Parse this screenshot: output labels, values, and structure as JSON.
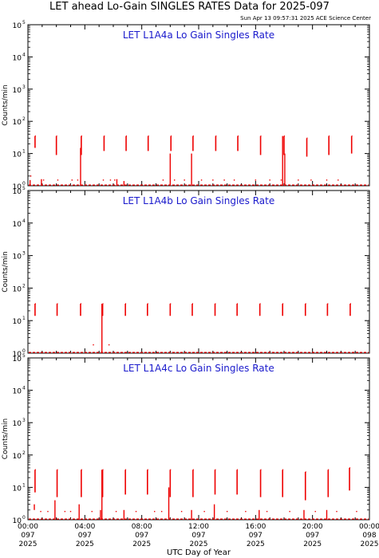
{
  "header": {
    "title": "LET ahead Lo-Gain SINGLES RATES Data for 2025-097",
    "timestamp": "Sun Apr 13 09:57:31 2025 ACE Science Center"
  },
  "chart_data": {
    "type": "scatter",
    "xlabel": "UTC Day of Year",
    "x_ticks": [
      {
        "time": "00:00",
        "day": "097",
        "year": "2025"
      },
      {
        "time": "04:00",
        "day": "097",
        "year": "2025"
      },
      {
        "time": "08:00",
        "day": "097",
        "year": "2025"
      },
      {
        "time": "12:00",
        "day": "097",
        "year": "2025"
      },
      {
        "time": "16:00",
        "day": "097",
        "year": "2025"
      },
      {
        "time": "20:00",
        "day": "097",
        "year": "2025"
      },
      {
        "time": "00:00",
        "day": "098",
        "year": "2025"
      }
    ],
    "xlim_hours": [
      0,
      24
    ],
    "y_scale": "log",
    "ylim": [
      1,
      100000
    ],
    "y_ticks": [
      1,
      10,
      100,
      1000,
      10000,
      100000
    ],
    "y_tick_labels": [
      "10",
      "10",
      "10",
      "10",
      "10",
      "10"
    ],
    "y_tick_exponents": [
      "0",
      "1",
      "2",
      "3",
      "4",
      "5"
    ],
    "color": "#ee0000",
    "panels": [
      {
        "label": "LET L1A4a Lo Gain Singles Rate",
        "ylabel": "Counts/min",
        "bursts": [
          {
            "start": 0.5,
            "end": 0.55,
            "low": 15,
            "high": 35
          },
          {
            "start": 2.0,
            "end": 2.05,
            "low": 9,
            "high": 35
          },
          {
            "start": 3.75,
            "end": 3.8,
            "low": 9,
            "high": 35
          },
          {
            "start": 5.35,
            "end": 5.4,
            "low": 12,
            "high": 35
          },
          {
            "start": 6.9,
            "end": 6.95,
            "low": 12,
            "high": 35
          },
          {
            "start": 8.45,
            "end": 8.5,
            "low": 12,
            "high": 35
          },
          {
            "start": 10.05,
            "end": 10.1,
            "low": 12,
            "high": 35
          },
          {
            "start": 11.6,
            "end": 11.65,
            "low": 12,
            "high": 35
          },
          {
            "start": 13.2,
            "end": 13.25,
            "low": 12,
            "high": 35
          },
          {
            "start": 14.75,
            "end": 14.8,
            "low": 12,
            "high": 35
          },
          {
            "start": 16.35,
            "end": 16.4,
            "low": 9,
            "high": 35
          },
          {
            "start": 18.0,
            "end": 18.05,
            "low": 9,
            "high": 35
          },
          {
            "start": 19.6,
            "end": 19.65,
            "low": 8,
            "high": 30
          },
          {
            "start": 21.15,
            "end": 21.2,
            "low": 9,
            "high": 35
          },
          {
            "start": 22.75,
            "end": 22.8,
            "low": 10,
            "high": 35
          }
        ],
        "spikes": [
          {
            "x": 3.7,
            "low": 1,
            "high": 15
          },
          {
            "x": 10.0,
            "low": 1,
            "high": 10
          },
          {
            "x": 11.5,
            "low": 1,
            "high": 10
          },
          {
            "x": 17.9,
            "low": 1,
            "high": 35
          },
          {
            "x": 18.05,
            "low": 1,
            "high": 10
          },
          {
            "x": 0.15,
            "low": 1,
            "high": 1.5
          },
          {
            "x": 0.95,
            "low": 1,
            "high": 1.6
          },
          {
            "x": 6.25,
            "low": 1,
            "high": 1.6
          },
          {
            "x": 6.75,
            "low": 1,
            "high": 1.4
          }
        ],
        "scatter": [
          {
            "x": 0.2,
            "y": 2
          },
          {
            "x": 1.1,
            "y": 1.5
          },
          {
            "x": 2.1,
            "y": 1.5
          },
          {
            "x": 3.1,
            "y": 1.5
          },
          {
            "x": 3.5,
            "y": 1.5
          },
          {
            "x": 5.3,
            "y": 1.5
          },
          {
            "x": 5.8,
            "y": 1.5
          },
          {
            "x": 6.1,
            "y": 1.5
          },
          {
            "x": 9.5,
            "y": 1.5
          },
          {
            "x": 10.3,
            "y": 1.5
          },
          {
            "x": 11.0,
            "y": 1.5
          },
          {
            "x": 12.2,
            "y": 1.5
          },
          {
            "x": 13.0,
            "y": 1.5
          },
          {
            "x": 13.8,
            "y": 1.5
          },
          {
            "x": 14.5,
            "y": 1.5
          },
          {
            "x": 16.0,
            "y": 1.5
          },
          {
            "x": 17.0,
            "y": 1.5
          },
          {
            "x": 17.8,
            "y": 1.5
          },
          {
            "x": 19.0,
            "y": 1.5
          },
          {
            "x": 19.9,
            "y": 1.5
          },
          {
            "x": 21.0,
            "y": 1.5
          },
          {
            "x": 21.8,
            "y": 1.5
          }
        ]
      },
      {
        "label": "LET L1A4b Lo Gain Singles Rate",
        "ylabel": "Counts/min",
        "bursts": [
          {
            "start": 0.5,
            "end": 0.55,
            "low": 14,
            "high": 33
          },
          {
            "start": 2.05,
            "end": 2.1,
            "low": 14,
            "high": 33
          },
          {
            "start": 3.7,
            "end": 3.75,
            "low": 14,
            "high": 33
          },
          {
            "start": 5.25,
            "end": 5.3,
            "low": 14,
            "high": 33
          },
          {
            "start": 6.85,
            "end": 6.9,
            "low": 14,
            "high": 33
          },
          {
            "start": 8.4,
            "end": 8.45,
            "low": 14,
            "high": 33
          },
          {
            "start": 10.0,
            "end": 10.05,
            "low": 14,
            "high": 33
          },
          {
            "start": 11.55,
            "end": 11.6,
            "low": 14,
            "high": 33
          },
          {
            "start": 13.15,
            "end": 13.2,
            "low": 14,
            "high": 33
          },
          {
            "start": 14.7,
            "end": 14.75,
            "low": 14,
            "high": 33
          },
          {
            "start": 16.3,
            "end": 16.35,
            "low": 14,
            "high": 33
          },
          {
            "start": 17.9,
            "end": 17.95,
            "low": 14,
            "high": 33
          },
          {
            "start": 19.5,
            "end": 19.55,
            "low": 14,
            "high": 33
          },
          {
            "start": 21.05,
            "end": 21.1,
            "low": 14,
            "high": 33
          },
          {
            "start": 22.65,
            "end": 22.7,
            "low": 14,
            "high": 33
          }
        ],
        "spikes": [
          {
            "x": 5.2,
            "low": 1,
            "high": 33
          }
        ],
        "scatter": [
          {
            "x": 4.6,
            "y": 1.8
          },
          {
            "x": 5.7,
            "y": 1.8
          }
        ]
      },
      {
        "label": "LET L1A4c Lo Gain Singles Rate",
        "ylabel": "Counts/min",
        "bursts": [
          {
            "start": 0.5,
            "end": 0.55,
            "low": 7,
            "high": 35
          },
          {
            "start": 2.05,
            "end": 2.1,
            "low": 5,
            "high": 35
          },
          {
            "start": 3.75,
            "end": 3.8,
            "low": 5,
            "high": 35
          },
          {
            "start": 5.25,
            "end": 5.3,
            "low": 5,
            "high": 35
          },
          {
            "start": 6.85,
            "end": 6.9,
            "low": 6,
            "high": 35
          },
          {
            "start": 8.4,
            "end": 8.45,
            "low": 6,
            "high": 35
          },
          {
            "start": 10.0,
            "end": 10.05,
            "low": 5,
            "high": 35
          },
          {
            "start": 11.6,
            "end": 11.65,
            "low": 5,
            "high": 35
          },
          {
            "start": 13.15,
            "end": 13.2,
            "low": 6,
            "high": 35
          },
          {
            "start": 14.7,
            "end": 14.75,
            "low": 6,
            "high": 35
          },
          {
            "start": 16.35,
            "end": 16.4,
            "low": 5,
            "high": 35
          },
          {
            "start": 17.9,
            "end": 17.95,
            "low": 5,
            "high": 35
          },
          {
            "start": 19.5,
            "end": 19.55,
            "low": 4,
            "high": 30
          },
          {
            "start": 21.1,
            "end": 21.15,
            "low": 5,
            "high": 35
          },
          {
            "start": 22.6,
            "end": 22.65,
            "low": 8,
            "high": 40
          }
        ],
        "spikes": [
          {
            "x": 0.45,
            "low": 2,
            "high": 3
          },
          {
            "x": 1.9,
            "low": 1,
            "high": 4
          },
          {
            "x": 3.6,
            "low": 1,
            "high": 3
          },
          {
            "x": 5.1,
            "low": 1,
            "high": 2
          },
          {
            "x": 5.2,
            "low": 1,
            "high": 35
          },
          {
            "x": 6.75,
            "low": 1,
            "high": 2
          },
          {
            "x": 9.9,
            "low": 1,
            "high": 10
          },
          {
            "x": 11.5,
            "low": 1,
            "high": 2
          },
          {
            "x": 13.1,
            "low": 1,
            "high": 3
          },
          {
            "x": 16.25,
            "low": 1,
            "high": 2
          },
          {
            "x": 19.4,
            "low": 1,
            "high": 2
          },
          {
            "x": 21.0,
            "low": 1,
            "high": 2
          }
        ],
        "scatter": [
          {
            "x": 0.9,
            "y": 1.8
          },
          {
            "x": 1.4,
            "y": 1.8
          },
          {
            "x": 2.6,
            "y": 1.8
          },
          {
            "x": 3.0,
            "y": 1.8
          },
          {
            "x": 4.5,
            "y": 1.8
          },
          {
            "x": 6.2,
            "y": 1.8
          },
          {
            "x": 7.6,
            "y": 1.8
          },
          {
            "x": 8.9,
            "y": 1.8
          },
          {
            "x": 9.4,
            "y": 1.8
          },
          {
            "x": 10.8,
            "y": 1.8
          },
          {
            "x": 12.4,
            "y": 1.8
          },
          {
            "x": 14.0,
            "y": 1.8
          },
          {
            "x": 15.3,
            "y": 1.8
          },
          {
            "x": 16.8,
            "y": 1.8
          },
          {
            "x": 18.4,
            "y": 1.8
          },
          {
            "x": 20.2,
            "y": 1.8
          },
          {
            "x": 21.7,
            "y": 1.8
          },
          {
            "x": 23.1,
            "y": 1.8
          }
        ]
      }
    ]
  }
}
